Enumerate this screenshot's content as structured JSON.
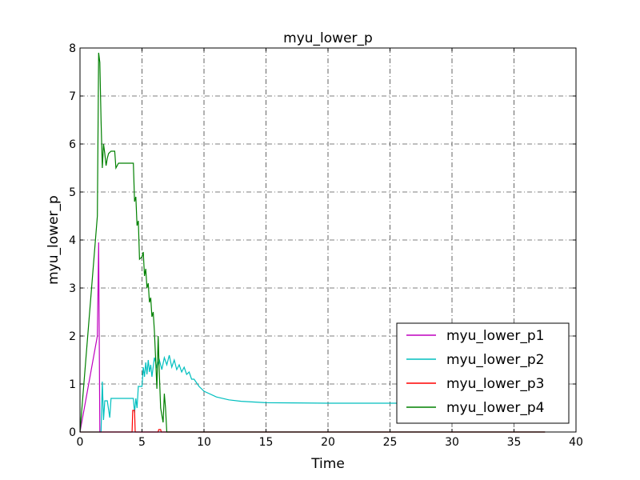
{
  "chart_data": {
    "type": "line",
    "title": "myu_lower_p",
    "xlabel": "Time",
    "ylabel": "myu_lower_p",
    "xlim": [
      0,
      40
    ],
    "ylim": [
      0,
      8
    ],
    "xticks": [
      "0",
      "5",
      "10",
      "15",
      "20",
      "25",
      "30",
      "35",
      "40"
    ],
    "yticks": [
      "0",
      "1",
      "2",
      "3",
      "4",
      "5",
      "6",
      "7",
      "8"
    ],
    "grid": true,
    "legend_position": "lower-right",
    "series": [
      {
        "name": "myu_lower_p1",
        "color": "#bf00bf",
        "points": [
          [
            0,
            0
          ],
          [
            1.4,
            2.0
          ],
          [
            1.5,
            3.95
          ],
          [
            1.6,
            0
          ],
          [
            37.5,
            0
          ]
        ]
      },
      {
        "name": "myu_lower_p2",
        "color": "#00bfbf",
        "points": [
          [
            0,
            0
          ],
          [
            1.7,
            0
          ],
          [
            1.8,
            1.05
          ],
          [
            1.9,
            0.25
          ],
          [
            2.0,
            0.65
          ],
          [
            2.2,
            0.65
          ],
          [
            2.4,
            0.3
          ],
          [
            2.5,
            0.7
          ],
          [
            3.0,
            0.7
          ],
          [
            4.3,
            0.7
          ],
          [
            4.4,
            0.4
          ],
          [
            4.5,
            0.7
          ],
          [
            4.6,
            0.5
          ],
          [
            4.7,
            0.95
          ],
          [
            5.0,
            0.95
          ],
          [
            5.1,
            1.35
          ],
          [
            5.2,
            1.15
          ],
          [
            5.3,
            1.45
          ],
          [
            5.4,
            1.2
          ],
          [
            5.5,
            1.5
          ],
          [
            5.6,
            1.25
          ],
          [
            5.7,
            1.4
          ],
          [
            5.8,
            1.15
          ],
          [
            6.0,
            1.55
          ],
          [
            6.2,
            1.35
          ],
          [
            6.4,
            1.5
          ],
          [
            6.6,
            1.3
          ],
          [
            6.8,
            1.55
          ],
          [
            7.0,
            1.4
          ],
          [
            7.2,
            1.6
          ],
          [
            7.4,
            1.35
          ],
          [
            7.6,
            1.5
          ],
          [
            7.8,
            1.3
          ],
          [
            8.0,
            1.4
          ],
          [
            8.2,
            1.25
          ],
          [
            8.4,
            1.35
          ],
          [
            8.6,
            1.2
          ],
          [
            8.8,
            1.25
          ],
          [
            9.0,
            1.1
          ],
          [
            9.2,
            1.1
          ],
          [
            9.6,
            0.95
          ],
          [
            10,
            0.85
          ],
          [
            11,
            0.73
          ],
          [
            12,
            0.67
          ],
          [
            13,
            0.64
          ],
          [
            15,
            0.61
          ],
          [
            20,
            0.6
          ],
          [
            25,
            0.6
          ],
          [
            37.5,
            0.6
          ]
        ]
      },
      {
        "name": "myu_lower_p3",
        "color": "#ff0000",
        "points": [
          [
            0,
            0
          ],
          [
            4.2,
            0
          ],
          [
            4.25,
            0.45
          ],
          [
            4.4,
            0.45
          ],
          [
            4.45,
            0
          ],
          [
            6.3,
            0
          ],
          [
            6.35,
            0.05
          ],
          [
            6.5,
            0.05
          ],
          [
            6.55,
            0
          ],
          [
            37.5,
            0
          ]
        ]
      },
      {
        "name": "myu_lower_p4",
        "color": "#008000",
        "points": [
          [
            0,
            0
          ],
          [
            1.4,
            4.5
          ],
          [
            1.5,
            7.9
          ],
          [
            1.6,
            7.7
          ],
          [
            1.7,
            6.5
          ],
          [
            1.8,
            5.5
          ],
          [
            1.9,
            6.0
          ],
          [
            2.0,
            5.8
          ],
          [
            2.1,
            5.55
          ],
          [
            2.2,
            5.7
          ],
          [
            2.3,
            5.8
          ],
          [
            2.5,
            5.85
          ],
          [
            2.8,
            5.85
          ],
          [
            2.9,
            5.5
          ],
          [
            3.1,
            5.6
          ],
          [
            3.5,
            5.6
          ],
          [
            4.3,
            5.6
          ],
          [
            4.4,
            4.8
          ],
          [
            4.5,
            4.9
          ],
          [
            4.6,
            4.3
          ],
          [
            4.7,
            4.4
          ],
          [
            4.8,
            3.6
          ],
          [
            5.0,
            3.65
          ],
          [
            5.1,
            3.75
          ],
          [
            5.2,
            3.25
          ],
          [
            5.3,
            3.4
          ],
          [
            5.4,
            3.0
          ],
          [
            5.5,
            3.1
          ],
          [
            5.6,
            2.7
          ],
          [
            5.7,
            2.8
          ],
          [
            5.8,
            2.4
          ],
          [
            5.9,
            2.5
          ],
          [
            6.0,
            2.1
          ],
          [
            6.1,
            1.5
          ],
          [
            6.2,
            0.9
          ],
          [
            6.3,
            2.0
          ],
          [
            6.4,
            1.2
          ],
          [
            6.5,
            0.5
          ],
          [
            6.7,
            0.2
          ],
          [
            6.8,
            0.8
          ],
          [
            6.9,
            0.5
          ],
          [
            7.0,
            0
          ],
          [
            37.5,
            0
          ]
        ]
      }
    ]
  }
}
